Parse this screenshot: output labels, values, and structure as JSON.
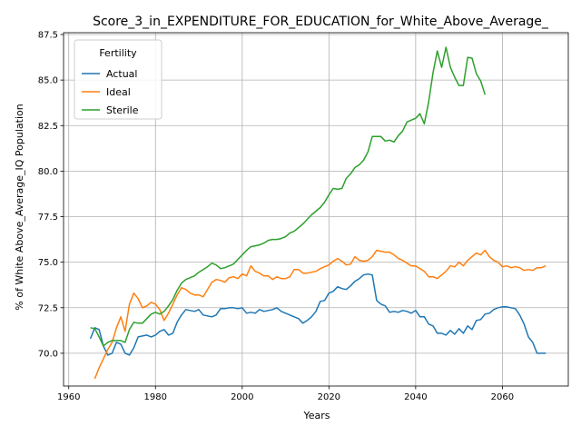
{
  "chart_data": {
    "type": "line",
    "title": "Score_3_in_EXPENDITURE_FOR_EDUCATION_for_White_Above_Average_",
    "xlabel": "Years",
    "ylabel": "% of White Above_Average_IQ Population",
    "xlim": [
      1958.8,
      2075.2
    ],
    "ylim": [
      68.2,
      87.6
    ],
    "xticks": [
      1960,
      1980,
      2000,
      2020,
      2040,
      2060
    ],
    "yticks": [
      70.0,
      72.5,
      75.0,
      77.5,
      80.0,
      82.5,
      85.0,
      87.5
    ],
    "xtick_labels": [
      "1960",
      "1980",
      "2000",
      "2020",
      "2040",
      "2060"
    ],
    "ytick_labels": [
      "70.0",
      "72.5",
      "75.0",
      "77.5",
      "80.0",
      "82.5",
      "85.0",
      "87.5"
    ],
    "grid": true,
    "legend": {
      "title": "Fertility",
      "placement": "upper-left"
    },
    "series": [
      {
        "name": "Actual",
        "color": "#1f77b4",
        "x": [
          1965,
          1966,
          1967,
          1968,
          1969,
          1970,
          1971,
          1972,
          1973,
          1974,
          1975,
          1976,
          1977,
          1978,
          1979,
          1980,
          1981,
          1982,
          1983,
          1984,
          1985,
          1986,
          1987,
          1988,
          1989,
          1990,
          1991,
          1992,
          1993,
          1994,
          1995,
          1996,
          1997,
          1998,
          1999,
          2000,
          2001,
          2002,
          2003,
          2004,
          2005,
          2006,
          2007,
          2008,
          2009,
          2010,
          2011,
          2012,
          2013,
          2014,
          2015,
          2016,
          2017,
          2018,
          2019,
          2020,
          2021,
          2022,
          2023,
          2024,
          2025,
          2026,
          2027,
          2028,
          2029,
          2030,
          2031,
          2032,
          2033,
          2034,
          2035,
          2036,
          2037,
          2038,
          2039,
          2040,
          2041,
          2042,
          2043,
          2044,
          2045,
          2046,
          2047,
          2048,
          2049,
          2050,
          2051,
          2052,
          2053,
          2054,
          2055,
          2056,
          2057,
          2058,
          2059,
          2060,
          2061,
          2062,
          2063,
          2064,
          2065,
          2066,
          2067,
          2068,
          2069,
          2070
        ],
        "values": [
          70.8,
          71.4,
          71.3,
          70.4,
          69.9,
          70.0,
          70.6,
          70.5,
          70.0,
          69.9,
          70.3,
          70.9,
          70.95,
          71.0,
          70.9,
          71.0,
          71.2,
          71.3,
          71.0,
          71.1,
          71.7,
          72.1,
          72.4,
          72.35,
          72.3,
          72.4,
          72.1,
          72.05,
          72.0,
          72.1,
          72.45,
          72.45,
          72.5,
          72.5,
          72.45,
          72.5,
          72.2,
          72.25,
          72.2,
          72.4,
          72.3,
          72.35,
          72.4,
          72.5,
          72.3,
          72.2,
          72.1,
          72.0,
          71.9,
          71.65,
          71.8,
          72.0,
          72.3,
          72.85,
          72.9,
          73.3,
          73.4,
          73.65,
          73.55,
          73.5,
          73.7,
          73.95,
          74.1,
          74.3,
          74.35,
          74.3,
          72.9,
          72.7,
          72.6,
          72.25,
          72.3,
          72.25,
          72.35,
          72.3,
          72.2,
          72.35,
          72.0,
          72.0,
          71.6,
          71.5,
          71.1,
          71.1,
          71.0,
          71.25,
          71.05,
          71.35,
          71.1,
          71.5,
          71.3,
          71.8,
          71.85,
          72.15,
          72.2,
          72.4,
          72.5,
          72.55,
          72.55,
          72.5,
          72.45,
          72.1,
          71.6,
          70.9,
          70.6,
          70.0,
          70.0,
          70.0
        ]
      },
      {
        "name": "Ideal",
        "color": "#ff7f0e",
        "x": [
          1966,
          1967,
          1968,
          1969,
          1970,
          1971,
          1972,
          1973,
          1974,
          1975,
          1976,
          1977,
          1978,
          1979,
          1980,
          1981,
          1982,
          1983,
          1984,
          1985,
          1986,
          1987,
          1988,
          1989,
          1990,
          1991,
          1992,
          1993,
          1994,
          1995,
          1996,
          1997,
          1998,
          1999,
          2000,
          2001,
          2002,
          2003,
          2004,
          2005,
          2006,
          2007,
          2008,
          2009,
          2010,
          2011,
          2012,
          2013,
          2014,
          2015,
          2016,
          2017,
          2018,
          2019,
          2020,
          2021,
          2022,
          2023,
          2024,
          2025,
          2026,
          2027,
          2028,
          2029,
          2030,
          2031,
          2032,
          2033,
          2034,
          2035,
          2036,
          2037,
          2038,
          2039,
          2040,
          2041,
          2042,
          2043,
          2044,
          2045,
          2046,
          2047,
          2048,
          2049,
          2050,
          2051,
          2052,
          2053,
          2054,
          2055,
          2056,
          2057,
          2058,
          2059,
          2060,
          2061,
          2062,
          2063,
          2064,
          2065,
          2066,
          2067,
          2068,
          2069,
          2070
        ],
        "values": [
          68.6,
          69.2,
          69.7,
          70.2,
          70.6,
          71.4,
          72.0,
          71.2,
          72.7,
          73.3,
          73.0,
          72.5,
          72.6,
          72.8,
          72.7,
          72.4,
          71.8,
          72.2,
          72.7,
          73.2,
          73.6,
          73.5,
          73.3,
          73.2,
          73.2,
          73.1,
          73.5,
          73.9,
          74.05,
          74.0,
          73.9,
          74.15,
          74.2,
          74.1,
          74.35,
          74.25,
          74.8,
          74.5,
          74.4,
          74.25,
          74.25,
          74.05,
          74.2,
          74.1,
          74.1,
          74.2,
          74.6,
          74.6,
          74.4,
          74.4,
          74.45,
          74.5,
          74.65,
          74.75,
          74.85,
          75.05,
          75.2,
          75.05,
          74.85,
          74.9,
          75.3,
          75.1,
          75.05,
          75.1,
          75.3,
          75.65,
          75.6,
          75.55,
          75.55,
          75.4,
          75.2,
          75.1,
          74.95,
          74.8,
          74.8,
          74.65,
          74.5,
          74.2,
          74.2,
          74.1,
          74.3,
          74.5,
          74.8,
          74.75,
          75.0,
          74.8,
          75.1,
          75.3,
          75.5,
          75.4,
          75.65,
          75.3,
          75.1,
          75.0,
          74.75,
          74.8,
          74.7,
          74.75,
          74.7,
          74.55,
          74.6,
          74.55,
          74.7,
          74.7,
          74.8
        ]
      },
      {
        "name": "Sterile",
        "color": "#2ca02c",
        "x": [
          1965,
          1966,
          1967,
          1968,
          1969,
          1970,
          1971,
          1972,
          1973,
          1974,
          1975,
          1976,
          1977,
          1978,
          1979,
          1980,
          1981,
          1982,
          1983,
          1984,
          1985,
          1986,
          1987,
          1988,
          1989,
          1990,
          1991,
          1992,
          1993,
          1994,
          1995,
          1996,
          1997,
          1998,
          1999,
          2000,
          2001,
          2002,
          2003,
          2004,
          2005,
          2006,
          2007,
          2008,
          2009,
          2010,
          2011,
          2012,
          2013,
          2014,
          2015,
          2016,
          2017,
          2018,
          2019,
          2020,
          2021,
          2022,
          2023,
          2024,
          2025,
          2026,
          2027,
          2028,
          2029,
          2030,
          2031,
          2032,
          2033,
          2034,
          2035,
          2036,
          2037,
          2038,
          2039,
          2040,
          2041,
          2042,
          2043,
          2044,
          2045,
          2046,
          2047,
          2048,
          2049,
          2050,
          2051,
          2052,
          2053,
          2054,
          2055,
          2056,
          2057
        ],
        "values": [
          71.4,
          71.35,
          70.9,
          70.4,
          70.6,
          70.7,
          70.7,
          70.7,
          70.6,
          71.3,
          71.7,
          71.65,
          71.65,
          71.9,
          72.15,
          72.25,
          72.15,
          72.3,
          72.6,
          72.95,
          73.45,
          73.85,
          74.05,
          74.15,
          74.25,
          74.45,
          74.6,
          74.75,
          74.95,
          74.85,
          74.65,
          74.7,
          74.8,
          74.9,
          75.15,
          75.4,
          75.65,
          75.85,
          75.9,
          75.95,
          76.05,
          76.2,
          76.25,
          76.25,
          76.3,
          76.4,
          76.6,
          76.7,
          76.9,
          77.1,
          77.35,
          77.6,
          77.8,
          78.0,
          78.3,
          78.7,
          79.05,
          79.0,
          79.05,
          79.6,
          79.85,
          80.2,
          80.35,
          80.6,
          81.05,
          81.9,
          81.9,
          81.9,
          81.65,
          81.7,
          81.6,
          81.95,
          82.2,
          82.7,
          82.8,
          82.9,
          83.15,
          82.6,
          83.8,
          85.4,
          86.6,
          85.7,
          86.8,
          85.7,
          85.15,
          84.7,
          84.7,
          86.25,
          86.2,
          85.35,
          84.95,
          84.2,
          null
        ]
      }
    ]
  }
}
